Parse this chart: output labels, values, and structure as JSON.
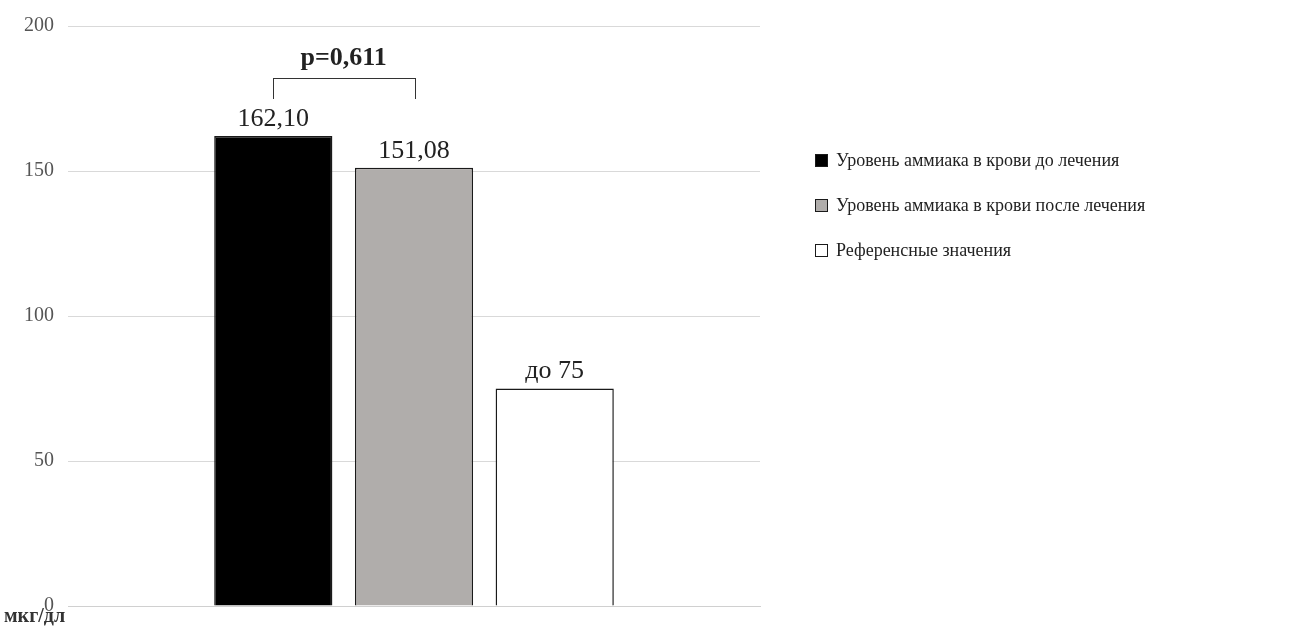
{
  "chart_data": {
    "type": "bar",
    "categories": [
      null
    ],
    "series": [
      {
        "name": "Уровень аммиака в крови до лечения",
        "color": "#000000",
        "values": [
          162.1
        ],
        "value_labels": [
          "162,10"
        ]
      },
      {
        "name": "Уровень аммиака в крови после лечения",
        "color": "#b0adab",
        "values": [
          151.08
        ],
        "value_labels": [
          "151,08"
        ]
      },
      {
        "name": "Референсные значения",
        "color": "#ffffff",
        "values": [
          75
        ],
        "value_labels": [
          "до 75"
        ]
      }
    ],
    "ylim": [
      0,
      200
    ],
    "yticks": [
      0,
      50,
      100,
      150,
      200
    ],
    "ylabel": "мкг/дл",
    "grid": "y",
    "legend": "right",
    "annotations": [
      "p=0,611"
    ]
  }
}
